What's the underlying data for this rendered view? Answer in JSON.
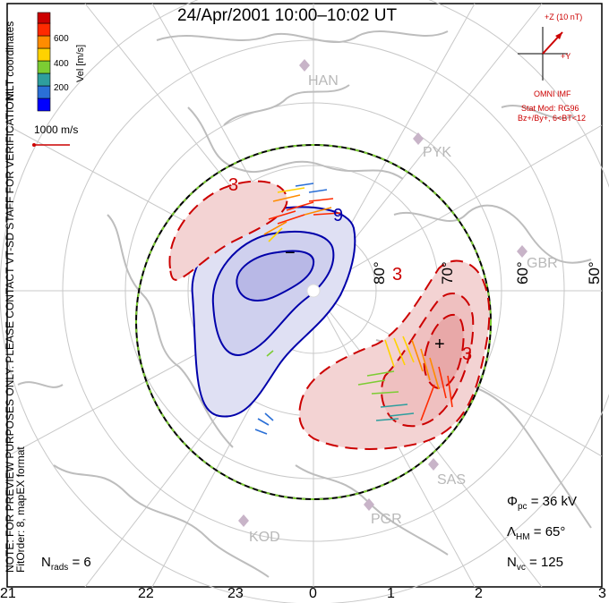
{
  "title": "24/Apr/2001  10:00–10:02 UT",
  "side_notes": {
    "coords": "MLT coordinates",
    "verification": "NOTE: FOR PREVIEW PURPOSES ONLY. PLEASE CONTACT VT-SD STAFF FOR VERIFICATION.",
    "fit": "FitOrder: 8, mapEX format"
  },
  "colorbar": {
    "label": "Vel [m/s]",
    "ticks": [
      "200",
      "400",
      "600"
    ],
    "colors": [
      "#0000ff",
      "#2a6fd6",
      "#2e9e9e",
      "#7ccc33",
      "#ffd200",
      "#ff8c00",
      "#ff2a00",
      "#cc0000"
    ]
  },
  "vector_scale": "1000 m/s",
  "stations": [
    "HAN",
    "PYK",
    "GBR",
    "SAS",
    "PGR",
    "KOD"
  ],
  "lat_labels": [
    "80°",
    "70°",
    "60°",
    "50°"
  ],
  "contour_labels": {
    "pos": [
      "3",
      "3",
      "3"
    ],
    "neg": [
      "9"
    ],
    "min_sign": "−",
    "max_sign": "+"
  },
  "imf": {
    "z_label": "+Z (10 nT)",
    "y_label": "+Y",
    "source": "OMNI IMF",
    "model_line1": "Stat Mod: RG96",
    "model_line2": "Bz+/By+, 6<BT<12"
  },
  "stats": {
    "nrads_label": "N",
    "nrads_sub": "rads",
    "nrads_value": "= 6",
    "phi_label": "Φ",
    "phi_sub": "pc",
    "phi_value": "= 36 kV",
    "lambda_label": "Λ",
    "lambda_sub": "HM",
    "lambda_value": "= 65°",
    "nvc_label": "N",
    "nvc_sub": "vc",
    "nvc_value": "= 125"
  },
  "hour_labels": [
    "21",
    "22",
    "23",
    "0",
    "1",
    "2",
    "3"
  ],
  "colors": {
    "positive": "#cc0000",
    "negative": "#0000aa",
    "pos_fill": "#f2c8c8",
    "neg_fill": "#c8c8ec",
    "land": "#bdbdbd",
    "grid": "#c8c8c8",
    "boundary": "#000000"
  }
}
